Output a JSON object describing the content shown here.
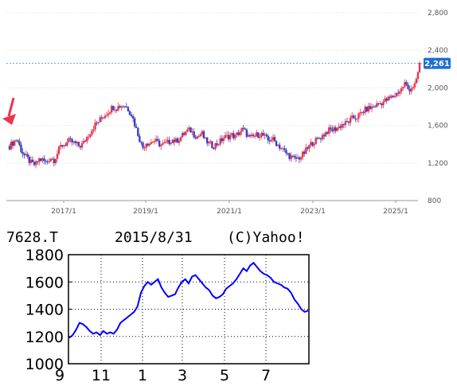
{
  "chart_data": [
    {
      "type": "candlestick",
      "x_tick_labels": [
        "2017/1",
        "2019/1",
        "2021/1",
        "2023/1",
        "2025/1"
      ],
      "y_ticks": [
        800,
        1200,
        1600,
        2000,
        2400,
        2800
      ],
      "y_tick_labels": [
        "800",
        "1,200",
        "1,600",
        "2,000",
        "2,400",
        "2,800"
      ],
      "ylim": [
        800,
        2800
      ],
      "last_price": 2261,
      "last_price_label": "2,261",
      "colors": {
        "up": "#e8364f",
        "down": "#3a3fbf",
        "reference_line": "#6a9fd6",
        "marker_arrow": "#e8364f"
      },
      "grid": true,
      "monthly_closes": [
        1380,
        1420,
        1460,
        1350,
        1280,
        1240,
        1190,
        1180,
        1240,
        1230,
        1200,
        1260,
        1230,
        1310,
        1390,
        1400,
        1430,
        1420,
        1400,
        1380,
        1410,
        1480,
        1540,
        1600,
        1640,
        1680,
        1720,
        1760,
        1800,
        1790,
        1810,
        1820,
        1780,
        1720,
        1600,
        1480,
        1360,
        1420,
        1410,
        1440,
        1420,
        1390,
        1400,
        1420,
        1450,
        1430,
        1460,
        1500,
        1540,
        1550,
        1500,
        1480,
        1520,
        1440,
        1410,
        1380,
        1400,
        1430,
        1470,
        1480,
        1500,
        1480,
        1520,
        1560,
        1520,
        1460,
        1480,
        1500,
        1510,
        1480,
        1440,
        1460,
        1420,
        1380,
        1340,
        1300,
        1270,
        1240,
        1250,
        1270,
        1320,
        1370,
        1420,
        1440,
        1470,
        1500,
        1540,
        1550,
        1560,
        1580,
        1610,
        1620,
        1650,
        1680,
        1690,
        1720,
        1760,
        1780,
        1790,
        1810,
        1830,
        1850,
        1870,
        1890,
        1910,
        1950,
        1980,
        2050,
        1980,
        2010,
        2040,
        2261
      ]
    },
    {
      "type": "line",
      "header_ticker": "7628.T",
      "header_date": "2015/8/31",
      "header_source": "(C)Yahoo!",
      "x_tick_labels": [
        "9",
        "11",
        "1",
        "3",
        "5",
        "7"
      ],
      "y_tick_labels": [
        "1000",
        "1200",
        "1400",
        "1600",
        "1800"
      ],
      "ylim": [
        1000,
        1800
      ],
      "color": "#0000ff",
      "grid": true,
      "values": [
        1190,
        1210,
        1250,
        1300,
        1290,
        1270,
        1240,
        1220,
        1230,
        1210,
        1240,
        1220,
        1230,
        1220,
        1250,
        1300,
        1320,
        1340,
        1360,
        1380,
        1420,
        1520,
        1570,
        1600,
        1580,
        1600,
        1620,
        1560,
        1520,
        1490,
        1500,
        1510,
        1560,
        1600,
        1620,
        1590,
        1640,
        1650,
        1620,
        1590,
        1560,
        1540,
        1500,
        1480,
        1490,
        1510,
        1550,
        1570,
        1590,
        1620,
        1660,
        1700,
        1680,
        1720,
        1740,
        1710,
        1680,
        1660,
        1650,
        1630,
        1600,
        1590,
        1580,
        1560,
        1550,
        1520,
        1470,
        1440,
        1400,
        1380,
        1390
      ]
    }
  ]
}
